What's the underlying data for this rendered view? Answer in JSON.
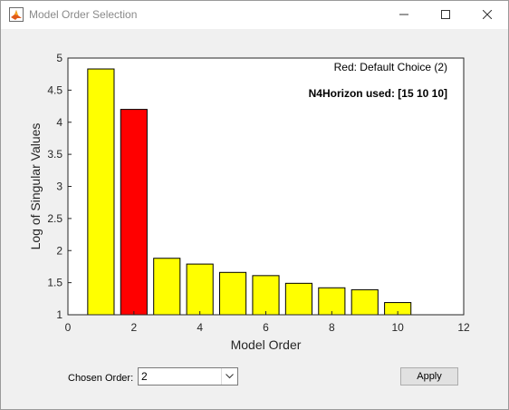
{
  "window": {
    "title": "Model Order Selection",
    "app_icon": "matlab-icon",
    "controls": [
      "minimize-icon",
      "maximize-icon",
      "close-icon"
    ]
  },
  "chart_data": {
    "type": "bar",
    "x": [
      1,
      2,
      3,
      4,
      5,
      6,
      7,
      8,
      9,
      10
    ],
    "values": [
      4.83,
      4.2,
      1.88,
      1.79,
      1.66,
      1.61,
      1.49,
      1.42,
      1.39,
      1.19
    ],
    "highlight_index": 1,
    "bar_color": "#ffff00",
    "highlight_color": "#ff0000",
    "xlabel": "Model Order",
    "ylabel": "Log of Singular Values",
    "xlim": [
      0,
      12
    ],
    "ylim": [
      1,
      5
    ],
    "xticks": [
      0,
      2,
      4,
      6,
      8,
      10,
      12
    ],
    "yticks": [
      1,
      1.5,
      2,
      2.5,
      3,
      3.5,
      4,
      4.5,
      5
    ],
    "xtick_labels": [
      "0",
      "2",
      "4",
      "6",
      "8",
      "10",
      "12"
    ],
    "ytick_labels": [
      "1",
      "1.5",
      "2",
      "2.5",
      "3",
      "3.5",
      "4",
      "4.5",
      "5"
    ],
    "grid": false,
    "annotations": [
      "Red: Default Choice (2)",
      "N4Horizon used: [15 10 10]"
    ]
  },
  "controls": {
    "chosen_order_label": "Chosen Order:",
    "chosen_order_value": "2",
    "apply_label": "Apply"
  }
}
